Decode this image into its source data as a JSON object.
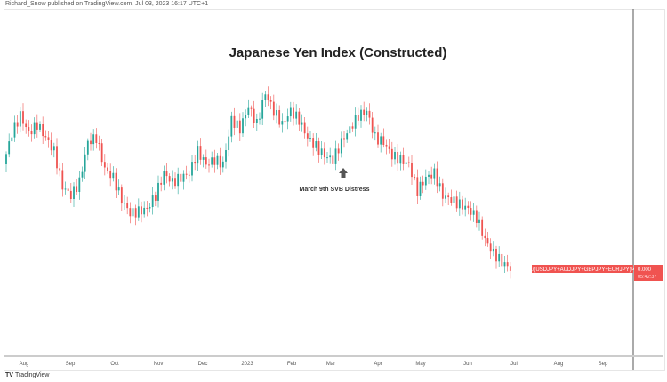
{
  "header": {
    "published": "Richard_Snow published on TradingView.com, Jul 03, 2023 16:17 UTC+1"
  },
  "footer": {
    "brand": "TradingView",
    "logo_icon": "tradingview-logo-icon"
  },
  "chart_data": {
    "type": "candlestick",
    "title": "Japanese Yen Index (Constructed)",
    "x_start": "2022-07-20",
    "x_end": "2023-07-03",
    "closes": [
      125,
      160,
      180,
      160,
      170,
      155,
      140,
      100,
      90,
      105,
      150,
      155,
      120,
      110,
      85,
      70,
      72,
      75,
      90,
      115,
      105,
      110,
      115,
      140,
      125,
      130,
      125,
      175,
      165,
      190,
      170,
      205,
      185,
      170,
      185,
      175,
      155,
      145,
      135,
      130,
      150,
      165,
      180,
      185,
      155,
      150,
      135,
      130,
      125,
      95,
      110,
      115,
      90,
      85,
      80,
      75,
      65,
      40,
      25,
      15,
      8
    ],
    "ylim": [
      0,
      220
    ],
    "x_ticks": [
      "Aug",
      "Sep",
      "Oct",
      "Nov",
      "Dec",
      "2023",
      "Feb",
      "Mar",
      "Apr",
      "May",
      "Jun",
      "Jul",
      "Aug",
      "Sep"
    ],
    "annotation": {
      "text": "March 9th SVB Distress",
      "date": "2023-03-09",
      "icon": "arrow-up-icon"
    },
    "series_label": "1/(USDJPY+AUDJPY+GBPJPY+EURJPY)/4",
    "last_price": "0.000",
    "countdown": "05:42:37",
    "colors": {
      "up": "#26a69a",
      "down": "#ef5350",
      "label": "#f05350"
    },
    "grid": false
  }
}
